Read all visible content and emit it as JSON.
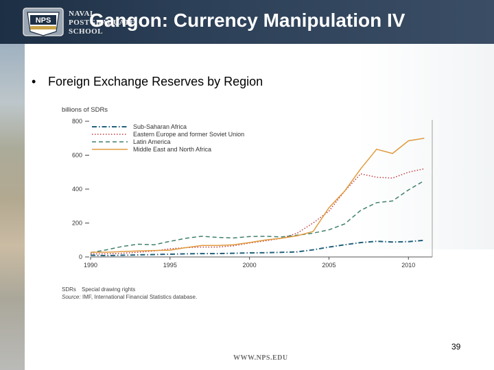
{
  "header": {
    "school_lines": [
      "NAVAL",
      "POSTGRADUATE",
      "SCHOOL"
    ],
    "logo_text": "NPS",
    "title": "Gangon: Currency Manipulation IV"
  },
  "body": {
    "bullet": "Foreign Exchange Reserves by Region"
  },
  "chart_data": {
    "type": "line",
    "ylabel": "billions of SDRs",
    "ylim": [
      0,
      800
    ],
    "yticks": [
      0,
      200,
      400,
      600,
      800
    ],
    "xlim": [
      1990,
      2011.5
    ],
    "xticks": [
      1990,
      1995,
      2000,
      2005,
      2010
    ],
    "legend_position": "top-left",
    "x": [
      1990,
      1991,
      1992,
      1993,
      1994,
      1995,
      1996,
      1997,
      1998,
      1999,
      2000,
      2001,
      2002,
      2003,
      2004,
      2005,
      2006,
      2007,
      2008,
      2009,
      2010,
      2011
    ],
    "series": [
      {
        "name": "Sub-Saharan Africa",
        "style": "dashdot",
        "color": "#1f5f7a",
        "values": [
          10,
          8,
          10,
          12,
          14,
          16,
          18,
          20,
          20,
          22,
          24,
          25,
          27,
          30,
          42,
          58,
          72,
          85,
          92,
          88,
          90,
          98
        ]
      },
      {
        "name": "Eastern Europe and former Soviet Union",
        "style": "dotted",
        "color": "#c0393b",
        "values": [
          18,
          18,
          22,
          28,
          35,
          48,
          55,
          58,
          58,
          66,
          82,
          95,
          110,
          140,
          200,
          270,
          390,
          490,
          470,
          465,
          500,
          520
        ]
      },
      {
        "name": "Latin America",
        "style": "dashed",
        "color": "#3f7f6a",
        "values": [
          25,
          42,
          62,
          75,
          72,
          92,
          110,
          122,
          115,
          112,
          120,
          122,
          118,
          128,
          140,
          160,
          195,
          275,
          320,
          330,
          395,
          450
        ]
      },
      {
        "name": "Middle East and North Africa",
        "style": "solid",
        "color": "#e09a3c",
        "values": [
          28,
          28,
          32,
          35,
          38,
          40,
          55,
          68,
          68,
          72,
          85,
          100,
          110,
          125,
          150,
          290,
          390,
          520,
          635,
          610,
          685,
          700
        ]
      }
    ],
    "footnotes": [
      [
        "SDRs",
        "Special drawing rights"
      ],
      [
        "Source:",
        "IMF, International Financial Statistics database."
      ]
    ]
  },
  "footer": {
    "page_number": "39",
    "url": "WWW.NPS.EDU"
  }
}
